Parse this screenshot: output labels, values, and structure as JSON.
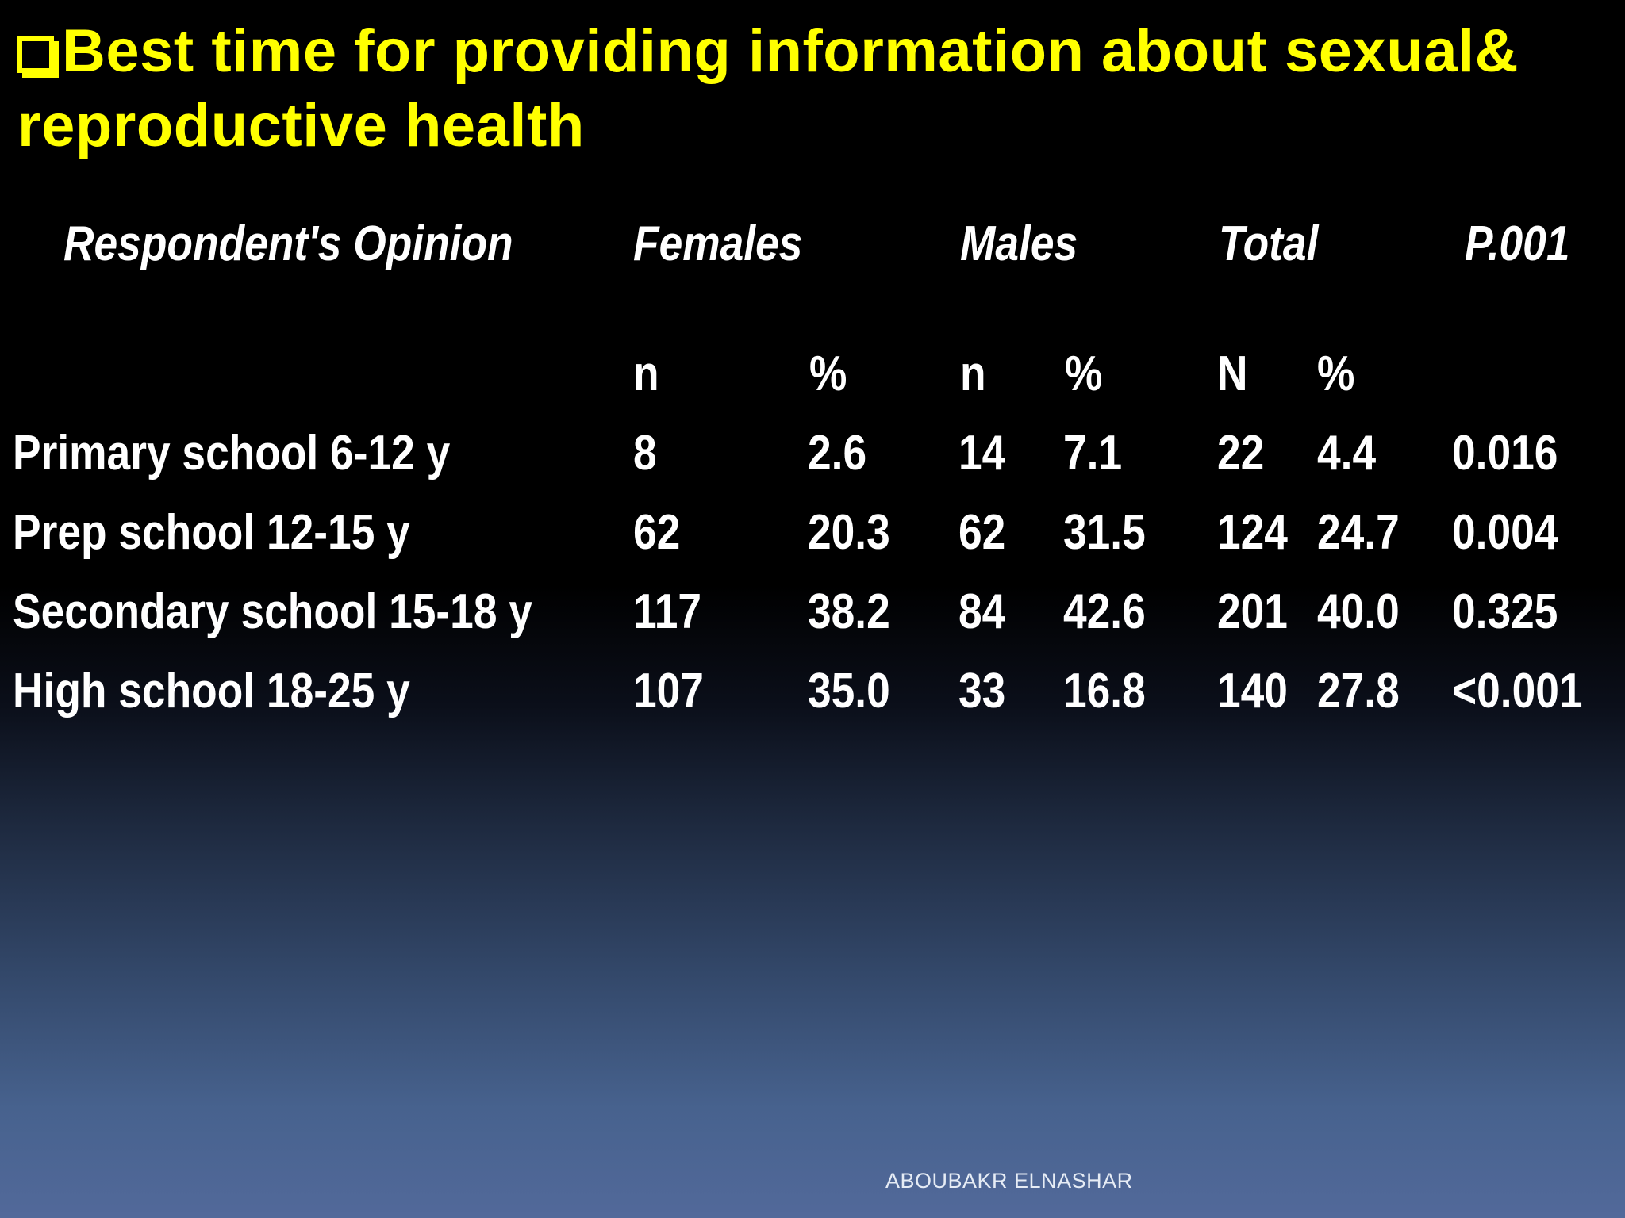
{
  "title": "Best time for providing information about sexual& reproductive health",
  "colors": {
    "title": "#ffff00",
    "text": "#ffffff",
    "background_top": "#000000",
    "background_bottom": "#52699a"
  },
  "bullet_icon": "hollow-square-bullet-icon",
  "table": {
    "headers": {
      "opinion": "Respondent's  Opinion",
      "females": "Females",
      "males": "Males",
      "total": "Total",
      "p": "P.001"
    },
    "subheaders": {
      "females_n": "n",
      "females_pct": "%",
      "males_n": "n",
      "males_pct": "%",
      "total_n": "N",
      "total_pct": "%"
    },
    "rows": [
      {
        "opinion": "Primary school 6-12 y",
        "f_n": "8",
        "f_pct": "2.6",
        "m_n": "14",
        "m_pct": "7.1",
        "t_n": "22",
        "t_pct": "4.4",
        "p": "0.016"
      },
      {
        "opinion": "Prep school 12-15 y",
        "f_n": "62",
        "f_pct": "20.3",
        "m_n": "62",
        "m_pct": "31.5",
        "t_n": "124",
        "t_pct": "24.7",
        "p": "0.004"
      },
      {
        "opinion": "Secondary school 15-18 y",
        "f_n": "117",
        "f_pct": "38.2",
        "m_n": "84",
        "m_pct": "42.6",
        "t_n": "201",
        "t_pct": "40.0",
        "p": "0.325"
      },
      {
        "opinion": "High school 18-25 y",
        "f_n": "107",
        "f_pct": "35.0",
        "m_n": "33",
        "m_pct": "16.8",
        "t_n": "140",
        "t_pct": "27.8",
        "p": "<0.001"
      }
    ]
  },
  "footer": "ABOUBAKR ELNASHAR"
}
